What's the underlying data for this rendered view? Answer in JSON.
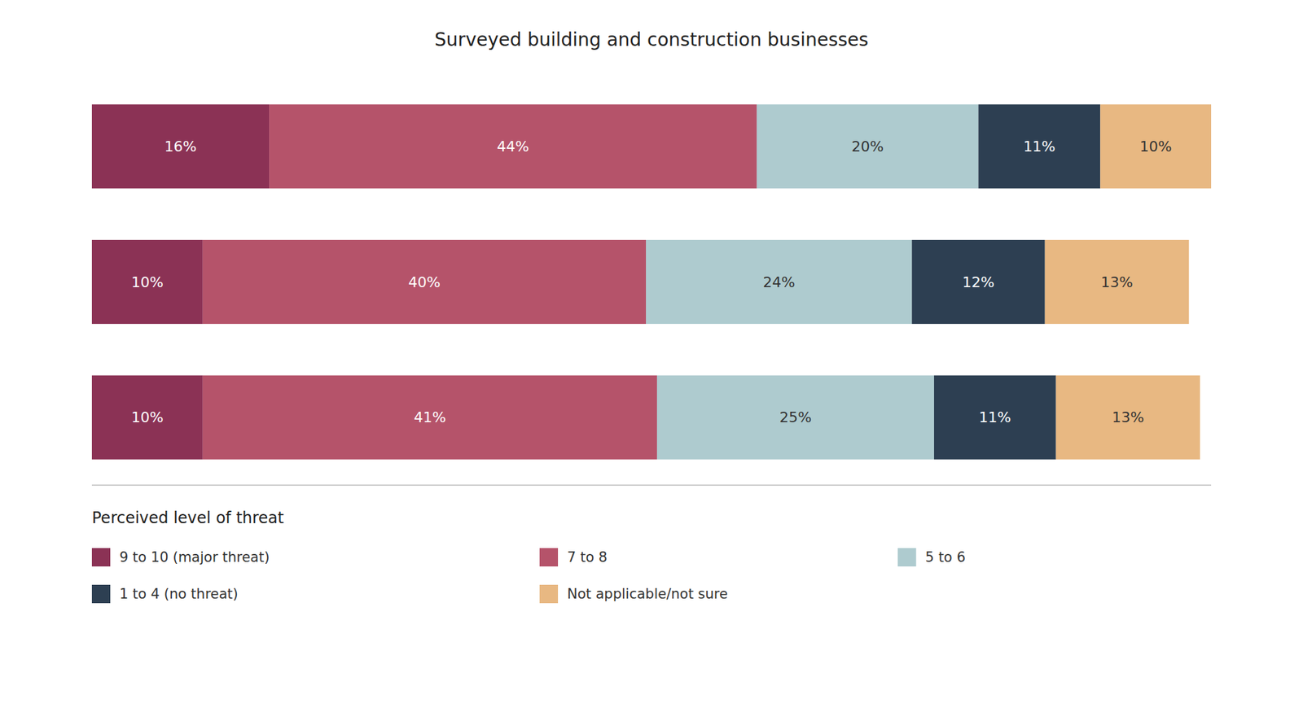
{
  "chart_data": {
    "type": "bar",
    "orientation": "horizontal",
    "stacked": true,
    "title": "Surveyed building and construction businesses",
    "categories": [
      null,
      null,
      null
    ],
    "series": [
      {
        "name": "9 to 10 (major threat)",
        "color": "#8B3255",
        "values": [
          16,
          10,
          10
        ],
        "value_labels": [
          "16%",
          "10%",
          "10%"
        ]
      },
      {
        "name": "7 to 8",
        "color": "#B5536A",
        "values": [
          44,
          40,
          41
        ],
        "value_labels": [
          "44%",
          "40%",
          "41%"
        ]
      },
      {
        "name": "5 to 6",
        "color": "#AECBCF",
        "values": [
          20,
          24,
          25
        ],
        "value_labels": [
          "20%",
          "24%",
          "25%"
        ]
      },
      {
        "name": "1 to 4 (no threat)",
        "color": "#2D3F52",
        "values": [
          11,
          12,
          11
        ],
        "value_labels": [
          "11%",
          "12%",
          "11%"
        ]
      },
      {
        "name": "Not applicable/not sure",
        "color": "#E8B882",
        "values": [
          10,
          13,
          13
        ],
        "value_labels": [
          "10%",
          "13%",
          "13%"
        ]
      }
    ],
    "xlim": [
      0,
      101
    ],
    "tick_labels": false,
    "data_labels": true,
    "legend": "bottom",
    "legend_title": "Perceived level of threat"
  }
}
